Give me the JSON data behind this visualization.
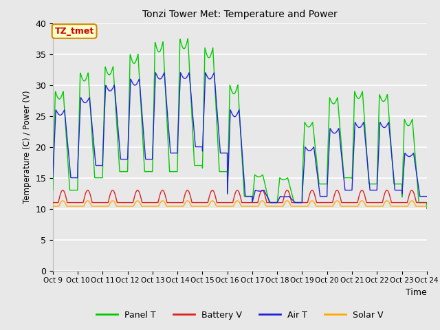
{
  "title": "Tonzi Tower Met: Temperature and Power",
  "xlabel": "Time",
  "ylabel": "Temperature (C) / Power (V)",
  "ylim": [
    0,
    40
  ],
  "yticks": [
    0,
    5,
    10,
    15,
    20,
    25,
    30,
    35,
    40
  ],
  "xtick_labels": [
    "Oct 9",
    "Oct 10",
    "Oct 11",
    "Oct 12",
    "Oct 13",
    "Oct 14",
    "Oct 15",
    "Oct 16",
    "Oct 17",
    "Oct 18",
    "Oct 19",
    "Oct 20",
    "Oct 21",
    "Oct 22",
    "Oct 23",
    "Oct 24"
  ],
  "legend_labels": [
    "Panel T",
    "Battery V",
    "Air T",
    "Solar V"
  ],
  "annotation_text": "TZ_tmet",
  "annotation_bg": "#ffffcc",
  "annotation_border": "#cc8800",
  "annotation_text_color": "#cc0000",
  "bg_color": "#e8e8e8",
  "grid_color": "#ffffff",
  "panel_T_color": "#00cc00",
  "battery_V_color": "#dd2222",
  "air_T_color": "#2222dd",
  "solar_V_color": "#ffaa00",
  "num_days": 15,
  "points_per_day": 144,
  "panel_T_peaks": [
    29,
    32,
    33,
    35,
    37,
    37.5,
    36,
    30,
    15.5,
    15,
    24,
    28,
    29,
    28.5,
    24.5,
    9
  ],
  "panel_T_mins": [
    13,
    15,
    16,
    16,
    16,
    17,
    16,
    12,
    11,
    11,
    14,
    15,
    14,
    14,
    11,
    10
  ],
  "air_T_peaks": [
    26,
    28,
    30,
    31,
    32,
    32,
    32,
    26,
    13,
    12,
    20,
    23,
    24,
    24,
    19,
    13
  ],
  "air_T_mins": [
    15,
    17,
    18,
    18,
    19,
    20,
    19,
    12,
    11,
    11,
    12,
    13,
    13,
    13,
    12,
    12
  ],
  "battery_base": 11.0,
  "battery_spike": 2.0,
  "solar_base": 10.4,
  "solar_spike": 0.9
}
